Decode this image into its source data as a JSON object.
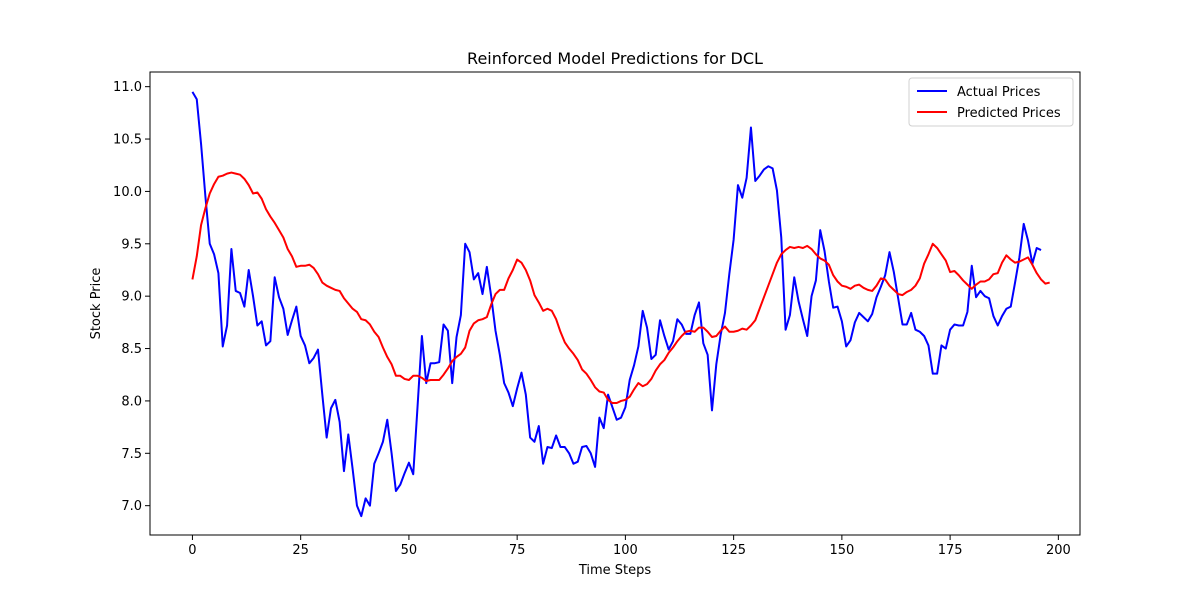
{
  "chart_data": {
    "type": "line",
    "title": "Reinforced Model Predictions for DCL",
    "xlabel": "Time Steps",
    "ylabel": "Stock Price",
    "xlim": [
      -9.8,
      205
    ],
    "ylim": [
      6.72,
      11.14
    ],
    "xticks": [
      0,
      25,
      50,
      75,
      100,
      125,
      150,
      175,
      200
    ],
    "yticks": [
      7.0,
      7.5,
      8.0,
      8.5,
      9.0,
      9.5,
      10.0,
      10.5,
      11.0
    ],
    "ytick_labels": [
      "7.0",
      "7.5",
      "8.0",
      "8.5",
      "9.0",
      "9.5",
      "10.0",
      "10.5",
      "11.0"
    ],
    "grid": false,
    "legend_position": "top-right",
    "series": [
      {
        "name": "Actual Prices",
        "color": "#0000ff",
        "values": [
          10.95,
          10.88,
          10.45,
          9.95,
          9.5,
          9.4,
          9.22,
          8.52,
          8.72,
          9.45,
          9.05,
          9.03,
          8.9,
          9.25,
          9.0,
          8.72,
          8.76,
          8.53,
          8.57,
          9.18,
          8.99,
          8.88,
          8.63,
          8.77,
          8.9,
          8.62,
          8.53,
          8.36,
          8.41,
          8.49,
          8.06,
          7.65,
          7.93,
          8.01,
          7.8,
          7.33,
          7.68,
          7.35,
          7.0,
          6.9,
          7.07,
          7.0,
          7.4,
          7.5,
          7.61,
          7.82,
          7.5,
          7.14,
          7.2,
          7.31,
          7.41,
          7.3,
          7.95,
          8.62,
          8.17,
          8.36,
          8.36,
          8.37,
          8.73,
          8.67,
          8.17,
          8.61,
          8.82,
          9.5,
          9.42,
          9.16,
          9.22,
          9.02,
          9.28,
          9.0,
          8.67,
          8.44,
          8.17,
          8.08,
          7.95,
          8.12,
          8.27,
          8.06,
          7.65,
          7.61,
          7.76,
          7.4,
          7.56,
          7.55,
          7.67,
          7.56,
          7.56,
          7.5,
          7.4,
          7.42,
          7.56,
          7.57,
          7.5,
          7.37,
          7.84,
          7.74,
          8.06,
          7.94,
          7.82,
          7.84,
          7.94,
          8.2,
          8.34,
          8.52,
          8.86,
          8.7,
          8.4,
          8.44,
          8.77,
          8.62,
          8.49,
          8.57,
          8.78,
          8.73,
          8.64,
          8.64,
          8.82,
          8.94,
          8.55,
          8.44,
          7.91,
          8.35,
          8.63,
          8.84,
          9.21,
          9.54,
          10.06,
          9.94,
          10.13,
          10.61,
          10.1,
          10.15,
          10.21,
          10.24,
          10.22,
          10.01,
          9.56,
          8.68,
          8.82,
          9.18,
          8.95,
          8.78,
          8.62,
          9.0,
          9.15,
          9.63,
          9.43,
          9.14,
          8.89,
          8.9,
          8.76,
          8.52,
          8.58,
          8.75,
          8.84,
          8.8,
          8.76,
          8.83,
          8.99,
          9.09,
          9.2,
          9.42,
          9.23,
          8.98,
          8.73,
          8.73,
          8.84,
          8.68,
          8.66,
          8.62,
          8.53,
          8.26,
          8.26,
          8.53,
          8.5,
          8.68,
          8.73,
          8.72,
          8.72,
          8.85,
          9.29,
          8.99,
          9.05,
          9.0,
          8.98,
          8.81,
          8.72,
          8.81,
          8.88,
          8.9,
          9.13,
          9.37,
          9.69,
          9.53,
          9.31,
          9.46,
          9.44
        ]
      },
      {
        "name": "Predicted Prices",
        "color": "#ff0000",
        "values": [
          9.16,
          9.38,
          9.68,
          9.84,
          9.98,
          10.07,
          10.14,
          10.15,
          10.17,
          10.18,
          10.17,
          10.16,
          10.12,
          10.06,
          9.98,
          9.99,
          9.93,
          9.83,
          9.76,
          9.7,
          9.63,
          9.56,
          9.45,
          9.38,
          9.28,
          9.29,
          9.29,
          9.3,
          9.27,
          9.21,
          9.13,
          9.1,
          9.08,
          9.06,
          9.05,
          8.98,
          8.93,
          8.88,
          8.85,
          8.78,
          8.77,
          8.73,
          8.66,
          8.61,
          8.51,
          8.42,
          8.35,
          8.24,
          8.24,
          8.21,
          8.2,
          8.24,
          8.24,
          8.22,
          8.19,
          8.2,
          8.2,
          8.2,
          8.25,
          8.31,
          8.38,
          8.42,
          8.45,
          8.51,
          8.67,
          8.74,
          8.77,
          8.78,
          8.8,
          8.92,
          9.02,
          9.06,
          9.06,
          9.17,
          9.25,
          9.35,
          9.32,
          9.25,
          9.15,
          9.01,
          8.94,
          8.86,
          8.88,
          8.86,
          8.78,
          8.66,
          8.56,
          8.5,
          8.45,
          8.39,
          8.3,
          8.26,
          8.2,
          8.13,
          8.09,
          8.08,
          8.01,
          7.98,
          7.98,
          8.0,
          8.01,
          8.04,
          8.11,
          8.17,
          8.14,
          8.16,
          8.21,
          8.29,
          8.35,
          8.39,
          8.46,
          8.51,
          8.57,
          8.62,
          8.66,
          8.67,
          8.66,
          8.7,
          8.7,
          8.66,
          8.61,
          8.62,
          8.67,
          8.71,
          8.66,
          8.66,
          8.67,
          8.69,
          8.68,
          8.72,
          8.77,
          8.88,
          8.99,
          9.1,
          9.21,
          9.32,
          9.4,
          9.44,
          9.47,
          9.46,
          9.47,
          9.46,
          9.48,
          9.45,
          9.4,
          9.36,
          9.34,
          9.3,
          9.2,
          9.14,
          9.1,
          9.09,
          9.07,
          9.1,
          9.11,
          9.08,
          9.06,
          9.05,
          9.1,
          9.17,
          9.16,
          9.1,
          9.06,
          9.02,
          9.01,
          9.04,
          9.06,
          9.1,
          9.17,
          9.31,
          9.4,
          9.5,
          9.46,
          9.4,
          9.34,
          9.23,
          9.24,
          9.2,
          9.15,
          9.11,
          9.07,
          9.11,
          9.14,
          9.14,
          9.16,
          9.21,
          9.22,
          9.32,
          9.39,
          9.35,
          9.32,
          9.33,
          9.35,
          9.37,
          9.3,
          9.22,
          9.16,
          9.12,
          9.13
        ]
      }
    ]
  }
}
